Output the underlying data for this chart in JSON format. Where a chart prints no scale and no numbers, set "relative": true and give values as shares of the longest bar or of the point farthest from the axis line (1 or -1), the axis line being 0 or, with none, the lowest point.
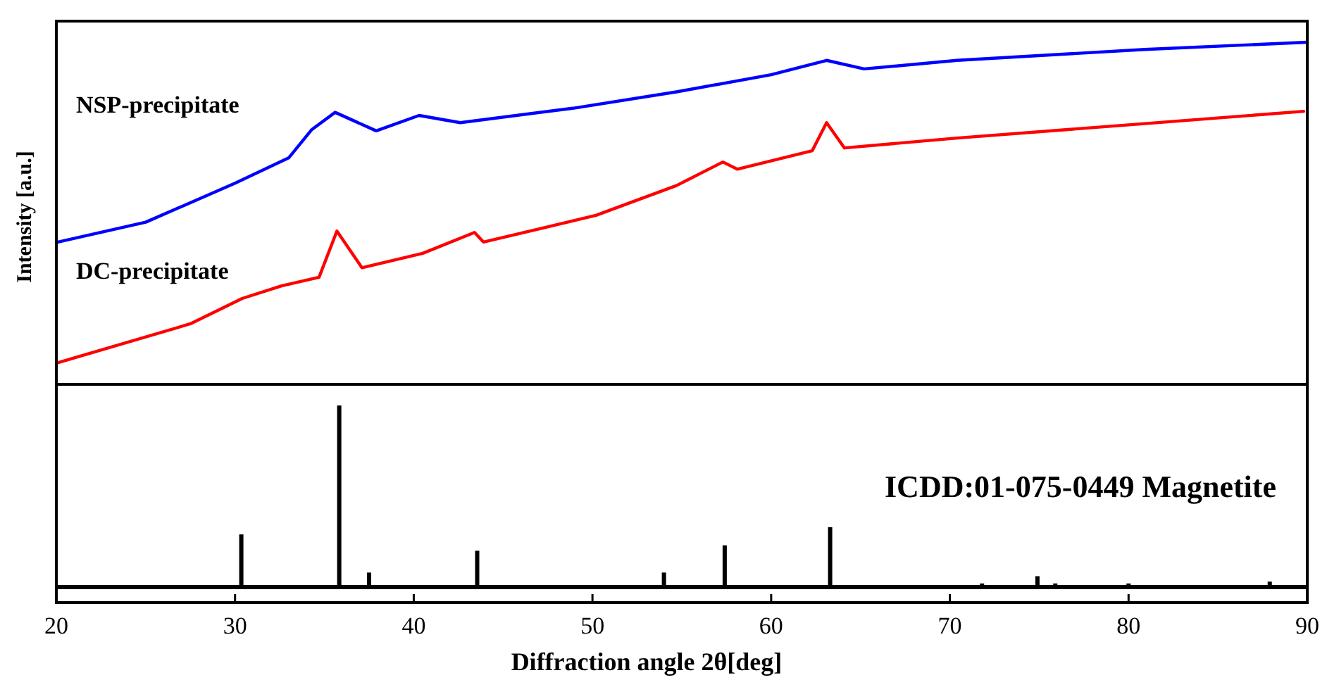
{
  "chart_data": [
    {
      "type": "line",
      "relative": true,
      "ylabel": "Intensity [a.u.]",
      "xlim": [
        20,
        90
      ],
      "xticks": [
        20,
        30,
        40,
        50,
        60,
        70,
        80,
        90
      ],
      "tick_labels": false,
      "series": [
        {
          "name": "NSP-precipitate",
          "color": "#0000ff",
          "x": [
            20,
            25,
            30,
            33,
            34.3,
            35.6,
            37.9,
            40.3,
            42.6,
            48.9,
            54.7,
            60.0,
            63.1,
            65.2,
            70.4,
            80.9,
            90
          ],
          "values": [
            0.415,
            0.474,
            0.588,
            0.662,
            0.745,
            0.795,
            0.741,
            0.786,
            0.765,
            0.807,
            0.855,
            0.905,
            0.947,
            0.922,
            0.947,
            0.979,
            1
          ]
        },
        {
          "name": "DC-precipitate",
          "color": "#ff0000",
          "x": [
            20,
            27.5,
            30.4,
            32.6,
            34.7,
            35.7,
            37.1,
            40.5,
            43.4,
            43.9,
            50.2,
            54.7,
            57.3,
            58.1,
            62.3,
            63.1,
            64.1,
            70.4,
            80.9,
            89.8
          ],
          "values": [
            0.062,
            0.177,
            0.251,
            0.288,
            0.313,
            0.448,
            0.341,
            0.383,
            0.444,
            0.416,
            0.494,
            0.581,
            0.65,
            0.629,
            0.683,
            0.765,
            0.691,
            0.72,
            0.762,
            0.798
          ]
        }
      ]
    },
    {
      "type": "bar",
      "relative": true,
      "xlabel": "Diffraction angle 2θ[deg]",
      "xlim": [
        20,
        90
      ],
      "xticks": [
        20,
        30,
        40,
        50,
        60,
        70,
        80,
        90
      ],
      "tick_labels": "x",
      "annotations": [
        "ICDD:01-075-0449 Magnetite"
      ],
      "x": [
        30.35,
        35.83,
        37.5,
        43.55,
        47.7,
        54.0,
        57.4,
        63.3,
        66.5,
        71.8,
        74.9,
        75.9,
        80.0,
        87.9
      ],
      "values": [
        0.29,
        1,
        0.08,
        0.2,
        0.01,
        0.08,
        0.23,
        0.33,
        0.01,
        0.02,
        0.06,
        0.02,
        0.02,
        0.03
      ],
      "color": "#000000"
    }
  ]
}
